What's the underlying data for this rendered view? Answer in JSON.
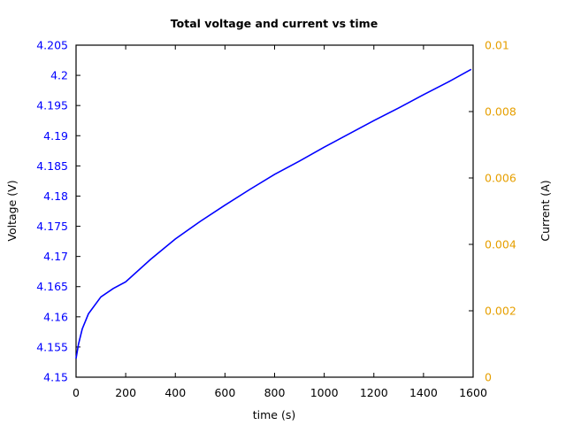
{
  "chart_data": {
    "type": "line",
    "title": "Total voltage and current vs time",
    "xlabel": "time (s)",
    "ylabel": "Voltage (V)",
    "y2label": "Current (A)",
    "xlim": [
      0,
      1600
    ],
    "ylim": [
      4.15,
      4.205
    ],
    "y2lim": [
      0,
      0.01
    ],
    "grid": false,
    "legend": null,
    "x_ticks": [
      "0",
      "200",
      "400",
      "600",
      "800",
      "1000",
      "1200",
      "1400",
      "1600"
    ],
    "y_ticks": [
      "4.15",
      "4.155",
      "4.16",
      "4.165",
      "4.17",
      "4.175",
      "4.18",
      "4.185",
      "4.19",
      "4.195",
      "4.2",
      "4.205"
    ],
    "y2_ticks": [
      "0",
      "0.002",
      "0.004",
      "0.006",
      "0.008",
      "0.01"
    ],
    "colors": {
      "voltage_axis": "#0000ff",
      "current_axis": "#e69f00",
      "voltage_series": "#0000ff"
    },
    "series": [
      {
        "name": "Voltage",
        "axis": "left",
        "color": "#0000ff",
        "x": [
          0,
          10,
          25,
          50,
          100,
          150,
          200,
          300,
          400,
          500,
          600,
          700,
          800,
          900,
          1000,
          1100,
          1200,
          1300,
          1400,
          1500,
          1592
        ],
        "y": [
          4.1531,
          4.1555,
          4.158,
          4.1605,
          4.1633,
          4.1647,
          4.1658,
          4.1695,
          4.1729,
          4.1758,
          4.1785,
          4.1811,
          4.1836,
          4.1858,
          4.1881,
          4.1903,
          4.1925,
          4.1946,
          4.1968,
          4.1989,
          4.201
        ]
      }
    ]
  }
}
